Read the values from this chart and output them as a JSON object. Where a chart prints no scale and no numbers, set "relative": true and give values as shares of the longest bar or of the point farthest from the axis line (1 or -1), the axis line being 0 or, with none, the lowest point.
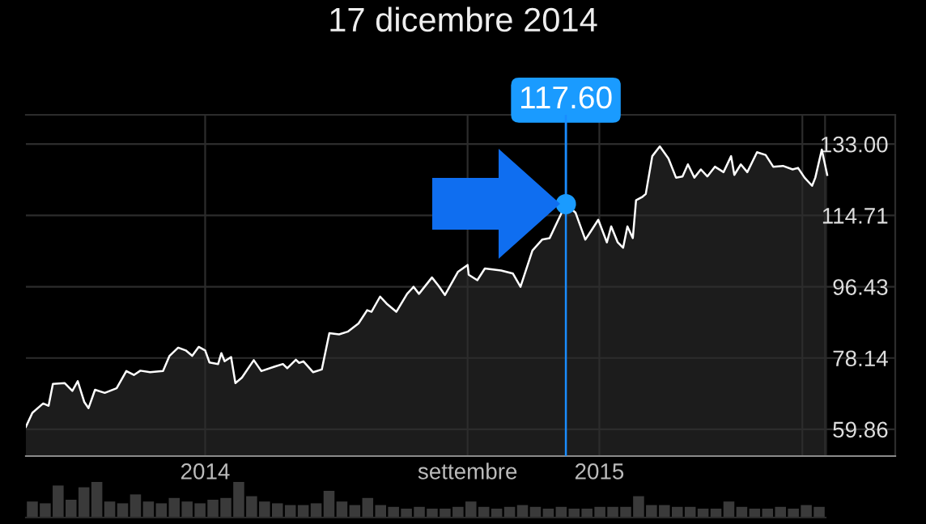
{
  "chart_data": [
    {
      "type": "area",
      "title": "17 dicembre 2014",
      "x": [
        "2013-07-19",
        "2013-07-25",
        "2013-08-04",
        "2013-08-09",
        "2013-08-13",
        "2013-08-24",
        "2013-08-31",
        "2013-09-05",
        "2013-09-11",
        "2013-09-15",
        "2013-09-21",
        "2013-09-30",
        "2013-10-11",
        "2013-10-20",
        "2013-10-27",
        "2013-11-02",
        "2013-11-11",
        "2013-11-23",
        "2013-11-29",
        "2013-12-07",
        "2013-12-14",
        "2013-12-20",
        "2013-12-26",
        "2014-01-01",
        "2014-01-05",
        "2014-01-13",
        "2014-01-16",
        "2014-01-19",
        "2014-01-25",
        "2014-01-29",
        "2014-02-04",
        "2014-02-15",
        "2014-02-22",
        "2014-03-06",
        "2014-03-14",
        "2014-03-18",
        "2014-03-26",
        "2014-03-29",
        "2014-04-02",
        "2014-04-11",
        "2014-04-19",
        "2014-04-26",
        "2014-05-05",
        "2014-05-13",
        "2014-05-23",
        "2014-05-31",
        "2014-06-04",
        "2014-06-12",
        "2014-06-18",
        "2014-06-27",
        "2014-07-07",
        "2014-07-13",
        "2014-07-18",
        "2014-07-30",
        "2014-08-05",
        "2014-08-11",
        "2014-08-23",
        "2014-09-01",
        "2014-09-02",
        "2014-09-10",
        "2014-09-17",
        "2014-10-02",
        "2014-10-13",
        "2014-10-20",
        "2014-10-31",
        "2014-11-09",
        "2014-11-16",
        "2014-11-24",
        "2014-12-01",
        "2014-12-10",
        "2014-12-19",
        "2014-12-24",
        "2014-12-31",
        "2015-01-08",
        "2015-01-12",
        "2015-01-18",
        "2015-01-23",
        "2015-01-27",
        "2015-02-01",
        "2015-02-04",
        "2015-02-10",
        "2015-02-13",
        "2015-02-19",
        "2015-02-26",
        "2015-03-06",
        "2015-03-13",
        "2015-03-19",
        "2015-03-24",
        "2015-03-30",
        "2015-04-05",
        "2015-04-11",
        "2015-04-18",
        "2015-04-26",
        "2015-05-03",
        "2015-05-06",
        "2015-05-12",
        "2015-05-18",
        "2015-05-27",
        "2015-06-04",
        "2015-06-11",
        "2015-06-20",
        "2015-06-29",
        "2015-07-04",
        "2015-07-10",
        "2015-07-17",
        "2015-07-20",
        "2015-07-26",
        "2015-07-31"
      ],
      "series": [
        {
          "color": "#ffffff",
          "values": [
            60.5,
            64.1,
            66.5,
            65.9,
            71.5,
            71.7,
            69.7,
            72.2,
            66.9,
            65.3,
            70.0,
            69.2,
            70.4,
            74.8,
            73.8,
            74.9,
            74.5,
            74.8,
            78.7,
            80.8,
            80.1,
            78.7,
            81.0,
            80.1,
            77.0,
            76.6,
            79.4,
            77.3,
            78.4,
            71.7,
            73.1,
            77.6,
            74.8,
            75.9,
            76.6,
            75.5,
            77.7,
            76.9,
            77.3,
            74.5,
            75.2,
            84.5,
            84.2,
            84.9,
            87.0,
            90.4,
            90.0,
            93.9,
            92.1,
            90.0,
            94.6,
            96.4,
            94.6,
            98.8,
            96.7,
            94.3,
            100.2,
            102.0,
            99.5,
            98.1,
            101.1,
            100.6,
            99.8,
            96.4,
            105.7,
            108.5,
            108.9,
            113.6,
            117.6,
            115.4,
            108.5,
            110.6,
            113.6,
            107.8,
            111.9,
            107.8,
            106.4,
            111.9,
            108.9,
            118.6,
            119.5,
            120.2,
            129.9,
            132.4,
            129.3,
            124.4,
            124.7,
            127.8,
            124.4,
            126.5,
            124.7,
            127.2,
            125.8,
            129.9,
            125.1,
            127.8,
            125.8,
            130.9,
            130.2,
            127.2,
            127.4,
            126.5,
            126.9,
            124.4,
            122.3,
            124.4,
            131.6,
            125.1
          ]
        }
      ],
      "xlim": [
        "2013-07-19",
        "2015-10-02"
      ],
      "xticks": [
        {
          "value": "2014-01-01",
          "label": "2014"
        },
        {
          "value": "2014-09-01",
          "label": "settembre"
        },
        {
          "value": "2015-01-01",
          "label": "2015"
        },
        {
          "value": "2015-07-08",
          "label": null
        },
        {
          "value": "2015-07-29",
          "label": null
        }
      ],
      "ylim": [
        53,
        140.5
      ],
      "yticks": [
        59.86,
        78.14,
        96.43,
        114.71,
        {
          "value": 133,
          "label": "133.00"
        }
      ],
      "grid": true,
      "ref_lines": [
        {
          "axis": "x",
          "value": "2014-12-01",
          "color": "#1a8cff"
        }
      ],
      "annotations": [
        {
          "text": "117.60",
          "x": "2014-12-01",
          "y": 117.6
        }
      ]
    },
    {
      "type": "bar",
      "relative": true,
      "categories": [
        null,
        null,
        null,
        null,
        null,
        null,
        null,
        null,
        null,
        null,
        null,
        null,
        null,
        null,
        null,
        null,
        null,
        null,
        null,
        null,
        null,
        null,
        null,
        null,
        null,
        null,
        null,
        null,
        null,
        null,
        null,
        null,
        null,
        null,
        null,
        null,
        null,
        null,
        null,
        null,
        null,
        null,
        null,
        null,
        null,
        null,
        null,
        null,
        null,
        null,
        null,
        null,
        null,
        null,
        null,
        null,
        null,
        null,
        null,
        null,
        null,
        null
      ],
      "series": [
        {
          "color": "#3a3a3a",
          "values": [
            0.45,
            0.4,
            0.9,
            0.5,
            0.85,
            1.0,
            0.45,
            0.4,
            0.65,
            0.45,
            0.4,
            0.55,
            0.45,
            0.4,
            0.5,
            0.55,
            1.0,
            0.6,
            0.45,
            0.4,
            0.35,
            0.35,
            0.4,
            0.75,
            0.45,
            0.35,
            0.55,
            0.35,
            0.3,
            0.25,
            0.3,
            0.25,
            0.25,
            0.3,
            0.45,
            0.3,
            0.25,
            0.3,
            0.35,
            0.3,
            0.25,
            0.3,
            0.25,
            0.25,
            0.3,
            0.3,
            0.3,
            0.6,
            0.35,
            0.35,
            0.3,
            0.3,
            0.25,
            0.25,
            0.45,
            0.3,
            0.25,
            0.25,
            0.3,
            0.25,
            0.35,
            0.3
          ]
        }
      ]
    }
  ]
}
